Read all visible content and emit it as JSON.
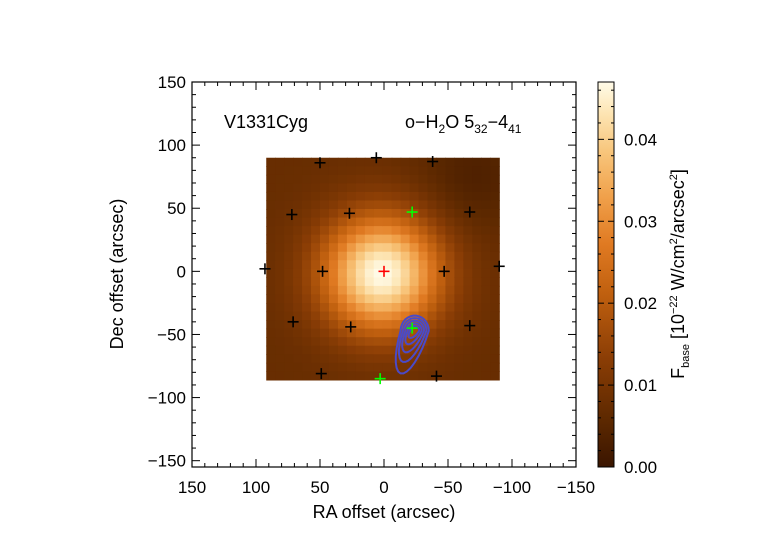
{
  "chart_data": {
    "type": "heatmap",
    "title": "",
    "source_label": "V1331Cyg",
    "line_label": {
      "species": "o−H",
      "species_sub": "2",
      "species_tail": "O 5",
      "upper_sub": "32",
      "sep": "−4",
      "lower_sub": "41"
    },
    "xlabel": "RA offset (arcsec)",
    "ylabel": "Dec offset (arcsec)",
    "xlim": [
      150,
      -150
    ],
    "ylim": [
      -155,
      150
    ],
    "x_ticks": [
      150,
      100,
      50,
      0,
      -50,
      -100,
      -150
    ],
    "y_ticks": [
      150,
      100,
      50,
      0,
      -50,
      -100,
      -150
    ],
    "x_tick_labels": [
      "150",
      "100",
      "50",
      "0",
      "−50",
      "−100",
      "−150"
    ],
    "y_tick_labels": [
      "150",
      "100",
      "50",
      "0",
      "−50",
      "−100",
      "−150"
    ],
    "map_extent": {
      "x": [
        92,
        -90
      ],
      "y": [
        -86,
        90
      ]
    },
    "emission_peak": {
      "x": 2,
      "y": -2,
      "peak_value": 0.047,
      "background": 0.0075
    },
    "colorbar": {
      "min": 0.0,
      "max": 0.047,
      "ticks": [
        0.0,
        0.01,
        0.02,
        0.03,
        0.04
      ],
      "tick_labels": [
        "0.00",
        "0.01",
        "0.02",
        "0.03",
        "0.04"
      ],
      "label_main": "F",
      "label_sub": "base",
      "label_pre": " [10",
      "label_exp": "−22",
      "label_mid": " W/cm",
      "label_exp2": "2",
      "label_mid2": "/arcsec",
      "label_exp3": "2",
      "label_end": "]"
    },
    "spaxels_black": [
      {
        "x": 50,
        "y": 86
      },
      {
        "x": 6,
        "y": 90
      },
      {
        "x": -38,
        "y": 87
      },
      {
        "x": 72,
        "y": 45
      },
      {
        "x": 27,
        "y": 46
      },
      {
        "x": -67,
        "y": 47
      },
      {
        "x": 93,
        "y": 2
      },
      {
        "x": 48,
        "y": 0
      },
      {
        "x": -47,
        "y": 0
      },
      {
        "x": -90,
        "y": 4
      },
      {
        "x": 71,
        "y": -40
      },
      {
        "x": 26,
        "y": -44
      },
      {
        "x": -67,
        "y": -43
      },
      {
        "x": 49,
        "y": -81
      },
      {
        "x": -41,
        "y": -83
      }
    ],
    "spaxels_green": [
      {
        "x": -22,
        "y": 47
      },
      {
        "x": -22,
        "y": -45
      },
      {
        "x": 3,
        "y": -85
      }
    ],
    "spaxel_center_red": {
      "x": 0,
      "y": 0
    },
    "contour_levels": [
      1,
      2,
      3,
      4,
      5
    ],
    "contour_center": {
      "x": -24,
      "y": -47
    },
    "colors": {
      "marker_black": "#000000",
      "marker_green": "#00ff00",
      "marker_red": "#ff0000",
      "contour": "#4a4ac8"
    }
  }
}
